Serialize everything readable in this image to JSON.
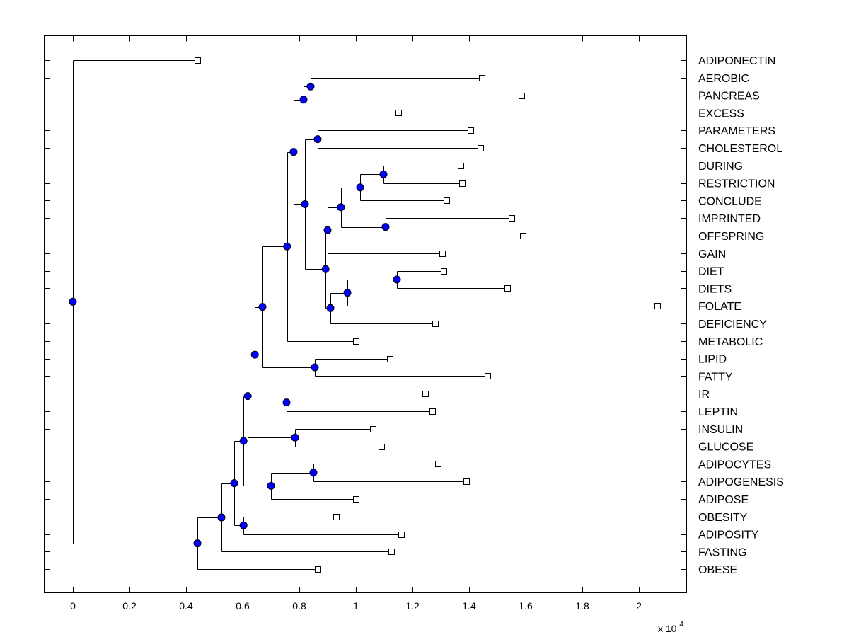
{
  "chart_data": {
    "type": "dendrogram",
    "x_axis": {
      "range": [
        -0.1,
        2.17
      ],
      "ticks": [
        "0",
        "0.2",
        "0.4",
        "0.6",
        "0.8",
        "1",
        "1.2",
        "1.4",
        "1.6",
        "1.8",
        "2"
      ],
      "tick_values": [
        0,
        0.2,
        0.4,
        0.6,
        0.8,
        1.0,
        1.2,
        1.4,
        1.6,
        1.8,
        2.0
      ],
      "multiplier_base": "x 10",
      "multiplier_exponent": "4"
    },
    "leaves": [
      {
        "label": "ADIPONECTIN",
        "x": 0.44
      },
      {
        "label": "AEROBIC",
        "x": 1.445
      },
      {
        "label": "PANCREAS",
        "x": 1.585
      },
      {
        "label": "EXCESS",
        "x": 1.15
      },
      {
        "label": "PARAMETERS",
        "x": 1.405
      },
      {
        "label": "CHOLESTEROL",
        "x": 1.44
      },
      {
        "label": "DURING",
        "x": 1.37
      },
      {
        "label": "RESTRICTION",
        "x": 1.375
      },
      {
        "label": "CONCLUDE",
        "x": 1.32
      },
      {
        "label": "IMPRINTED",
        "x": 1.55
      },
      {
        "label": "OFFSPRING",
        "x": 1.59
      },
      {
        "label": "GAIN",
        "x": 1.305
      },
      {
        "label": "DIET",
        "x": 1.31
      },
      {
        "label": "DIETS",
        "x": 1.535
      },
      {
        "label": "FOLATE",
        "x": 2.065
      },
      {
        "label": "DEFICIENCY",
        "x": 1.28
      },
      {
        "label": "METABOLIC",
        "x": 1.0
      },
      {
        "label": "LIPID",
        "x": 1.12
      },
      {
        "label": "FATTY",
        "x": 1.465
      },
      {
        "label": "IR",
        "x": 1.245
      },
      {
        "label": "LEPTIN",
        "x": 1.27
      },
      {
        "label": "INSULIN",
        "x": 1.06
      },
      {
        "label": "GLUCOSE",
        "x": 1.09
      },
      {
        "label": "ADIPOCYTES",
        "x": 1.29
      },
      {
        "label": "ADIPOGENESIS",
        "x": 1.39
      },
      {
        "label": "ADIPOSE",
        "x": 1.0
      },
      {
        "label": "OBESITY",
        "x": 0.93
      },
      {
        "label": "ADIPOSITY",
        "x": 1.16
      },
      {
        "label": "FASTING",
        "x": 1.125
      },
      {
        "label": "OBESE",
        "x": 0.865
      }
    ],
    "merges": [
      {
        "id": "n1",
        "x": 0.84,
        "children": [
          "AEROBIC",
          "PANCREAS"
        ]
      },
      {
        "id": "n2",
        "x": 0.815,
        "children": [
          "n1",
          "EXCESS"
        ]
      },
      {
        "id": "n3",
        "x": 0.865,
        "children": [
          "PARAMETERS",
          "CHOLESTEROL"
        ]
      },
      {
        "id": "n4",
        "x": 1.0975,
        "children": [
          "DURING",
          "RESTRICTION"
        ]
      },
      {
        "id": "n5",
        "x": 1.015,
        "children": [
          "n4",
          "CONCLUDE"
        ]
      },
      {
        "id": "n6",
        "x": 1.105,
        "children": [
          "IMPRINTED",
          "OFFSPRING"
        ]
      },
      {
        "id": "n7",
        "x": 0.947,
        "children": [
          "n5",
          "n6"
        ]
      },
      {
        "id": "n8",
        "x": 0.9,
        "children": [
          "n7",
          "GAIN"
        ]
      },
      {
        "id": "n9",
        "x": 1.145,
        "children": [
          "DIET",
          "DIETS"
        ]
      },
      {
        "id": "n10",
        "x": 0.97,
        "children": [
          "n9",
          "FOLATE"
        ]
      },
      {
        "id": "n11",
        "x": 0.91,
        "children": [
          "n10",
          "DEFICIENCY"
        ]
      },
      {
        "id": "n12",
        "x": 0.893,
        "children": [
          "n8",
          "n11"
        ]
      },
      {
        "id": "n13",
        "x": 0.82,
        "children": [
          "n3",
          "n12"
        ]
      },
      {
        "id": "n14",
        "x": 0.78,
        "children": [
          "n2",
          "n13"
        ]
      },
      {
        "id": "n15",
        "x": 0.757,
        "children": [
          "n14",
          "METABOLIC"
        ]
      },
      {
        "id": "n16",
        "x": 0.855,
        "children": [
          "LIPID",
          "FATTY"
        ]
      },
      {
        "id": "n17",
        "x": 0.67,
        "children": [
          "n15",
          "n16"
        ]
      },
      {
        "id": "n18",
        "x": 0.755,
        "children": [
          "IR",
          "LEPTIN"
        ]
      },
      {
        "id": "n19",
        "x": 0.643,
        "children": [
          "n17",
          "n18"
        ]
      },
      {
        "id": "n20",
        "x": 0.785,
        "children": [
          "INSULIN",
          "GLUCOSE"
        ]
      },
      {
        "id": "n21",
        "x": 0.618,
        "children": [
          "n19",
          "n20"
        ]
      },
      {
        "id": "n22",
        "x": 0.85,
        "children": [
          "ADIPOCYTES",
          "ADIPOGENESIS"
        ]
      },
      {
        "id": "n23",
        "x": 0.7,
        "children": [
          "n22",
          "ADIPOSE"
        ]
      },
      {
        "id": "n24",
        "x": 0.603,
        "children": [
          "n21",
          "n23"
        ]
      },
      {
        "id": "n25",
        "x": 0.603,
        "children": [
          "OBESITY",
          "ADIPOSITY"
        ]
      },
      {
        "id": "n26",
        "x": 0.57,
        "children": [
          "n24",
          "n25"
        ]
      },
      {
        "id": "n27",
        "x": 0.525,
        "children": [
          "n26",
          "FASTING"
        ]
      },
      {
        "id": "n28",
        "x": 0.44,
        "children": [
          "n27",
          "OBESE"
        ]
      },
      {
        "id": "n29",
        "x": 0.0,
        "children": [
          "ADIPONECTIN",
          "n28"
        ]
      }
    ],
    "colors": {
      "node_fill": "#0000ff",
      "leaf_fill": "#ffffff",
      "line": "#000000"
    },
    "grid": false
  }
}
